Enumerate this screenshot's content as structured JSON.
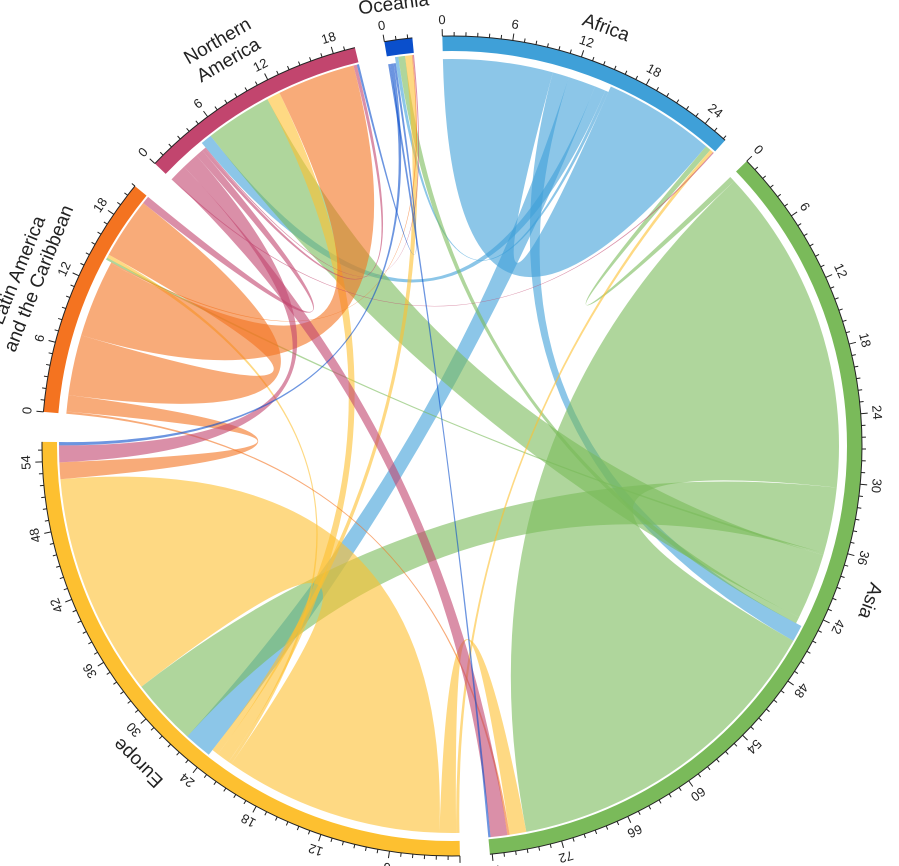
{
  "chart_data": {
    "type": "chord",
    "title": "",
    "sectors": [
      {
        "name": "Oceania",
        "label_lines": [
          "Oceania"
        ],
        "color": "#0a4fcc"
      },
      {
        "name": "Africa",
        "label_lines": [
          "Africa"
        ],
        "color": "#3fa0d8"
      },
      {
        "name": "Asia",
        "label_lines": [
          "Asia"
        ],
        "color": "#7aba5a"
      },
      {
        "name": "Europe",
        "label_lines": [
          "Europe"
        ],
        "color": "#fdc030"
      },
      {
        "name": "Latin America and the Caribbean",
        "label_lines": [
          "Latin America",
          "and the Caribbean"
        ],
        "color": "#f47320"
      },
      {
        "name": "Northern America",
        "label_lines": [
          "Northern",
          "America"
        ],
        "color": "#c2456e"
      }
    ],
    "matrix_order": [
      "Africa",
      "Asia",
      "Europe",
      "Latin America and the Caribbean",
      "Northern America",
      "Oceania"
    ],
    "matrix_note": "rows = origin, columns = destination",
    "matrix": [
      [
        10.0,
        1.5,
        2.5,
        0.0,
        1.0,
        0.3
      ],
      [
        0.5,
        30.0,
        6.0,
        0.2,
        6.0,
        0.6
      ],
      [
        0.3,
        1.5,
        20.0,
        0.3,
        1.2,
        0.6
      ],
      [
        0.0,
        0.2,
        1.5,
        5.5,
        7.0,
        0.1
      ],
      [
        0.1,
        1.5,
        1.5,
        0.7,
        0.3,
        0.1
      ],
      [
        0.0,
        0.2,
        0.3,
        0.0,
        0.2,
        0.0
      ]
    ],
    "major_tick_step": 6,
    "minor_tick_step": 1
  }
}
